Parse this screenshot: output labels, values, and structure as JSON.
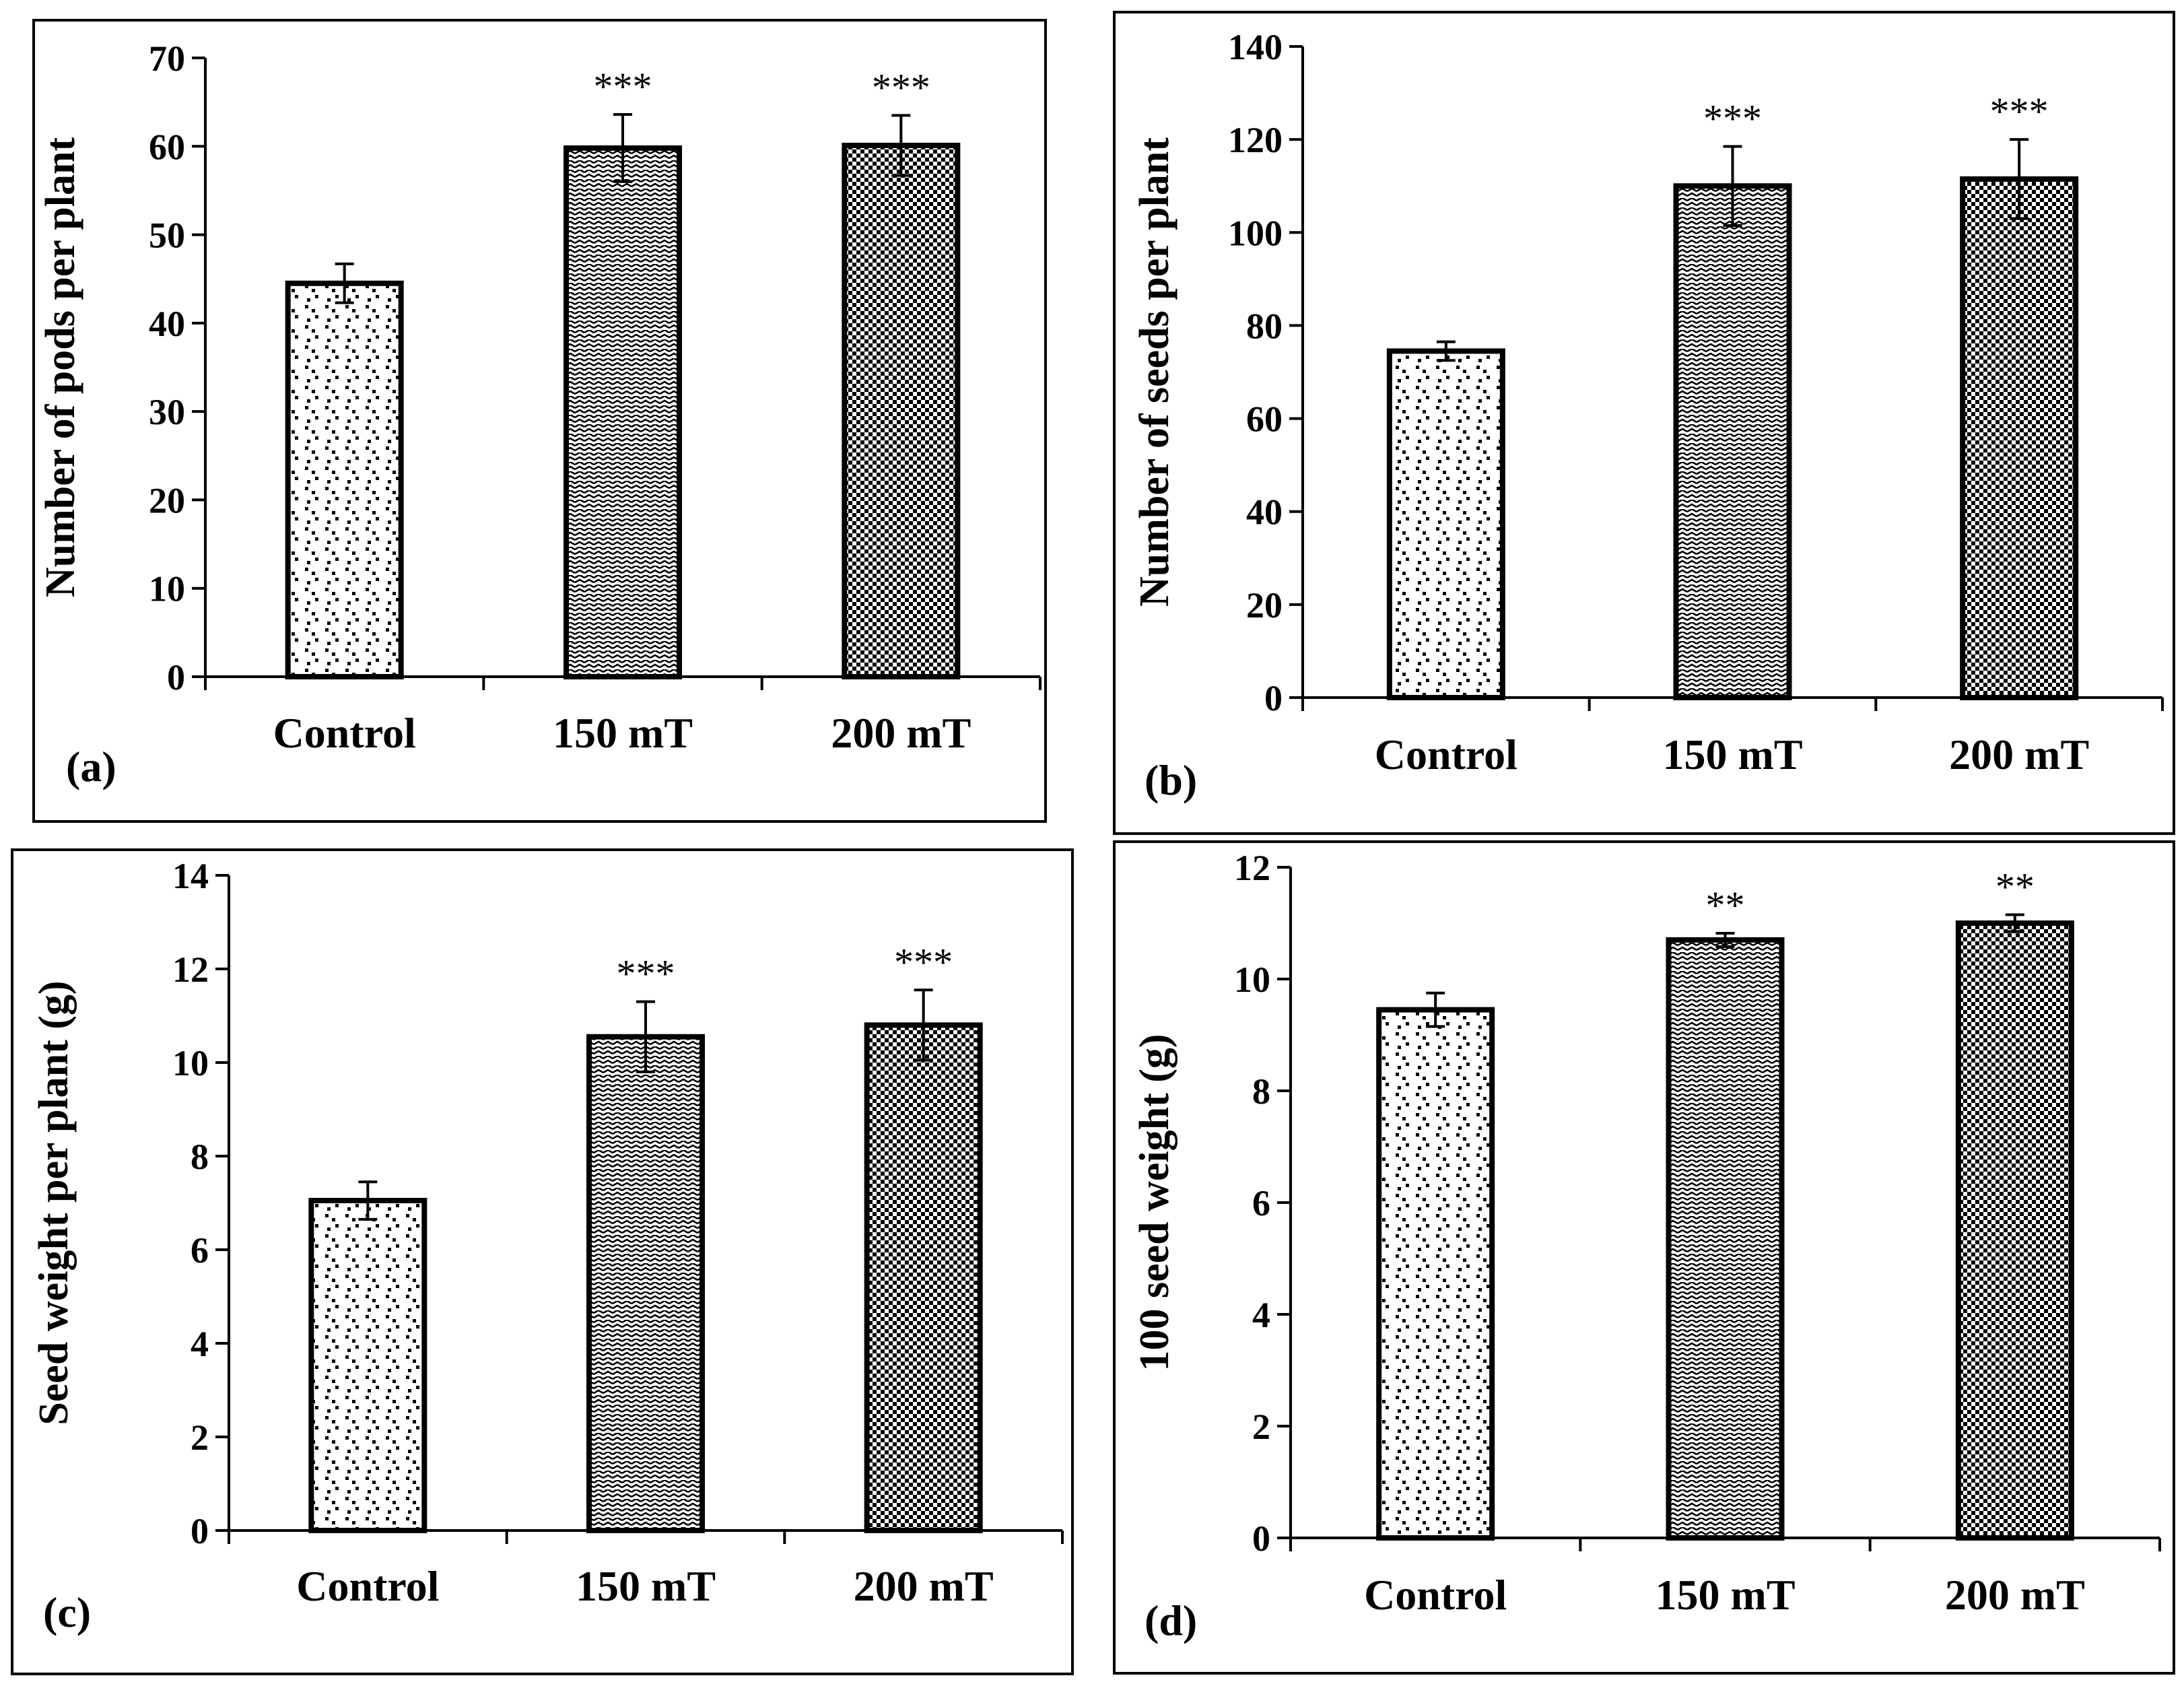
{
  "figure": {
    "panels": [
      "(a)",
      "(b)",
      "(c)",
      "(d)"
    ]
  },
  "colors": {
    "background": "#ffffff",
    "ink": "#000000"
  },
  "chart_data": [
    {
      "type": "bar",
      "panel_label": "(a)",
      "title": "",
      "xlabel": "",
      "ylabel": "Number of pods per plant",
      "categories": [
        "Control",
        "150 mT",
        "200 mT"
      ],
      "values": [
        44.5,
        59.8,
        60.1
      ],
      "errors": [
        2.2,
        3.8,
        3.4
      ],
      "significance": [
        "",
        "***",
        "***"
      ],
      "patterns": [
        "dots",
        "zigzag",
        "checker"
      ],
      "ylim": [
        0,
        70
      ],
      "yticks": [
        0,
        10,
        20,
        30,
        40,
        50,
        60,
        70
      ],
      "grid": false
    },
    {
      "type": "bar",
      "panel_label": "(b)",
      "title": "",
      "xlabel": "",
      "ylabel": "Number of seeds per plant",
      "categories": [
        "Control",
        "150 mT",
        "200 mT"
      ],
      "values": [
        74.5,
        110,
        111.5
      ],
      "errors": [
        2,
        8.5,
        8.5
      ],
      "significance": [
        "",
        "***",
        "***"
      ],
      "patterns": [
        "dots",
        "zigzag",
        "checker"
      ],
      "ylim": [
        0,
        140
      ],
      "yticks": [
        0,
        20,
        40,
        60,
        80,
        100,
        120,
        140
      ],
      "grid": false
    },
    {
      "type": "bar",
      "panel_label": "(c)",
      "title": "",
      "xlabel": "",
      "ylabel": "Seed weight per plant (g)",
      "categories": [
        "Control",
        "150 mT",
        "200 mT"
      ],
      "values": [
        7.05,
        10.55,
        10.8
      ],
      "errors": [
        0.4,
        0.75,
        0.75
      ],
      "significance": [
        "",
        "***",
        "***"
      ],
      "patterns": [
        "dots",
        "zigzag",
        "checker"
      ],
      "ylim": [
        0,
        14
      ],
      "yticks": [
        0,
        2,
        4,
        6,
        8,
        10,
        12,
        14
      ],
      "grid": false
    },
    {
      "type": "bar",
      "panel_label": "(d)",
      "title": "",
      "xlabel": "",
      "ylabel": "100 seed weight (g)",
      "categories": [
        "Control",
        "150 mT",
        "200 mT"
      ],
      "values": [
        9.45,
        10.7,
        11
      ],
      "errors": [
        0.3,
        0.12,
        0.15
      ],
      "significance": [
        "",
        "**",
        "**"
      ],
      "patterns": [
        "dots",
        "zigzag",
        "checker"
      ],
      "ylim": [
        0,
        12
      ],
      "yticks": [
        0,
        2,
        4,
        6,
        8,
        10,
        12
      ],
      "grid": false
    }
  ]
}
